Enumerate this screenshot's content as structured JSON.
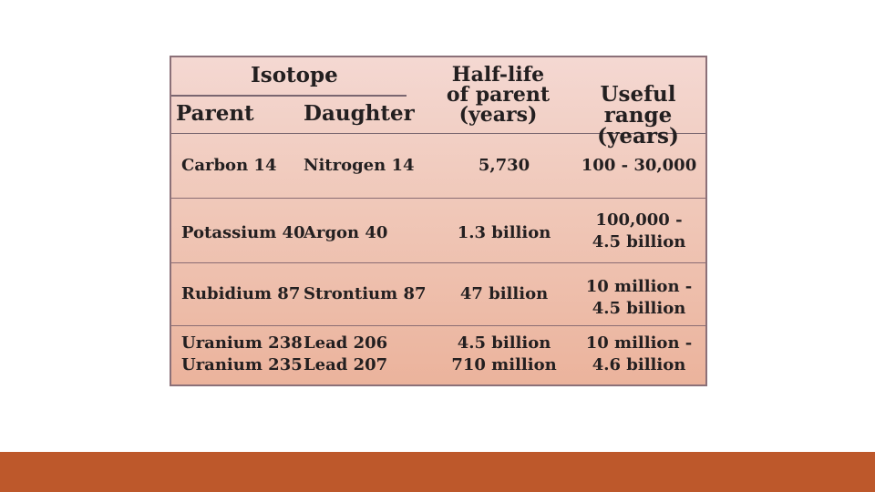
{
  "table": {
    "header": {
      "isotope": "Isotope",
      "parent": "Parent",
      "daughter": "Daughter",
      "half_life": "Half-life\nof parent\n(years)",
      "useful_range": "Useful range\n(years)"
    },
    "rows": [
      {
        "parent": "Carbon 14",
        "daughter": "Nitrogen 14",
        "half_life": "5,730",
        "useful_range": "100 - 30,000"
      },
      {
        "parent": "Potassium 40",
        "daughter": "Argon 40",
        "half_life": "1.3 billion",
        "useful_range": "100,000 -\n4.5 billion"
      },
      {
        "parent": "Rubidium 87",
        "daughter": "Strontium 87",
        "half_life": "47 billion",
        "useful_range": "10 million -\n4.5 billion"
      },
      {
        "parent": "Uranium 238\nUranium 235",
        "daughter": "Lead 206\nLead 207",
        "half_life": "4.5 billion\n710 million",
        "useful_range": "10 million -\n4.6 billion"
      }
    ]
  },
  "colors": {
    "accent_band": "#bd582b",
    "accent_stripe": "#de7b1c",
    "table_background": "#f0c8b9"
  }
}
